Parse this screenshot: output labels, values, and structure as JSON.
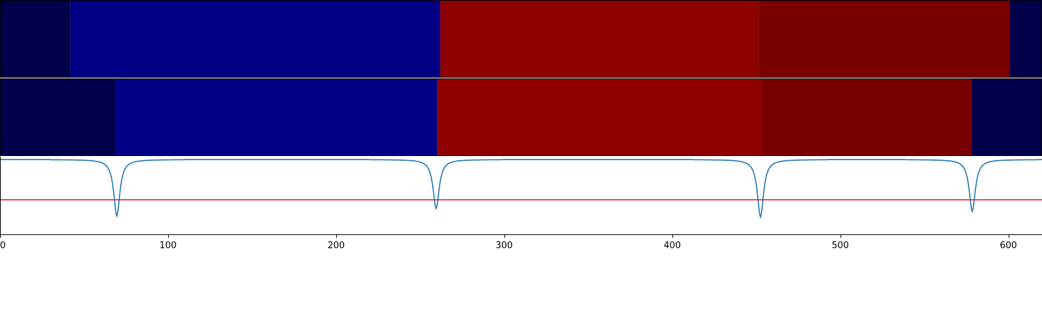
{
  "chart_data": {
    "type": "heatmap",
    "title": "",
    "xlabel": "",
    "ylabel": "",
    "xlim": [
      0,
      620
    ],
    "xticks": [
      0,
      100,
      200,
      300,
      400,
      500,
      600
    ],
    "x_tick_labels": [
      "0",
      "100",
      "200",
      "300",
      "400",
      "500",
      "600"
    ],
    "grid": false,
    "legend": "none",
    "rows": [
      {
        "segments": [
          {
            "start": 0,
            "end": 42,
            "color": "#00004a"
          },
          {
            "start": 42,
            "end": 262,
            "color": "#000085"
          },
          {
            "start": 262,
            "end": 451,
            "color": "#8f0000"
          },
          {
            "start": 451,
            "end": 601,
            "color": "#7a0000"
          },
          {
            "start": 601,
            "end": 620,
            "color": "#00004a"
          }
        ]
      },
      {
        "segments": [
          {
            "start": 0,
            "end": 69,
            "color": "#00004a"
          },
          {
            "start": 69,
            "end": 260,
            "color": "#000085"
          },
          {
            "start": 260,
            "end": 453,
            "color": "#8f0000"
          },
          {
            "start": 453,
            "end": 578,
            "color": "#7a0000"
          },
          {
            "start": 578,
            "end": 620,
            "color": "#00004a"
          }
        ]
      }
    ],
    "line_plot": {
      "ylim": [
        -1.3,
        0.05
      ],
      "baseline": 0,
      "line_color": "#1f77b4",
      "threshold": -0.7,
      "threshold_color": "#d62728",
      "dips": [
        {
          "x": 69.5,
          "depth": -0.98
        },
        {
          "x": 259.5,
          "depth": -0.85
        },
        {
          "x": 452.5,
          "depth": -1.0
        },
        {
          "x": 578.5,
          "depth": -0.9
        }
      ]
    }
  }
}
